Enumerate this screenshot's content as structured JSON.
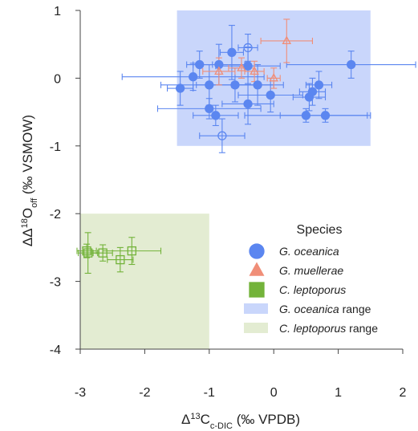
{
  "chart_data": {
    "type": "scatter",
    "xlabel_prefix": "Δ",
    "xlabel_sup": "13",
    "xlabel_main": "C",
    "xlabel_sub": "c-DIC",
    "xlabel_suffix": " (‰ VPDB)",
    "ylabel_prefix": "ΔΔ",
    "ylabel_sup": "18",
    "ylabel_main": "O",
    "ylabel_sub": "off",
    "ylabel_suffix": " (‰ VSMOW)",
    "xlim": [
      -3.0,
      2.0
    ],
    "ylim": [
      -4.0,
      1.0
    ],
    "xticks": [
      -3,
      -2,
      -1,
      0,
      1,
      2
    ],
    "xtick_labels": [
      "-3",
      "-2",
      "-1",
      "0",
      "1",
      "2"
    ],
    "yticks": [
      1,
      0,
      -1,
      -2,
      -3,
      -4
    ],
    "ytick_labels": [
      "1",
      "0",
      "-1",
      "-2",
      "-3",
      "-4"
    ],
    "ranges": [
      {
        "name": "G. oceanica range",
        "x": [
          -1.5,
          1.5
        ],
        "y": [
          -1.0,
          1.0
        ],
        "color": "#c9d6fb"
      },
      {
        "name": "C. leptoporus range",
        "x": [
          -3.0,
          -1.0
        ],
        "y": [
          -4.0,
          -2.0
        ],
        "color": "#e3ecd2"
      }
    ],
    "series": [
      {
        "name": "G. oceanica",
        "color": "#5b86f0",
        "marker": "circle",
        "points": [
          {
            "x": -0.65,
            "y": 0.38,
            "xerr": 0.18,
            "yerr": 0.4,
            "filled": true
          },
          {
            "x": -0.4,
            "y": 0.18,
            "xerr": 0.5,
            "yerr": 0.28,
            "filled": true
          },
          {
            "x": -1.15,
            "y": 0.2,
            "xerr": 0.2,
            "yerr": 0.2,
            "filled": true
          },
          {
            "x": -1.25,
            "y": 0.02,
            "xerr": 1.1,
            "yerr": 0.2,
            "filled": true
          },
          {
            "x": -1.45,
            "y": -0.15,
            "xerr": 0.2,
            "yerr": 0.25,
            "filled": true
          },
          {
            "x": -1.0,
            "y": -0.1,
            "xerr": 0.75,
            "yerr": 0.3,
            "filled": true
          },
          {
            "x": -0.6,
            "y": -0.1,
            "xerr": 0.6,
            "yerr": 0.25,
            "filled": true
          },
          {
            "x": -0.25,
            "y": -0.1,
            "xerr": 0.4,
            "yerr": 0.3,
            "filled": true
          },
          {
            "x": -0.85,
            "y": 0.2,
            "xerr": 0.4,
            "yerr": 0.3,
            "filled": true
          },
          {
            "x": -0.4,
            "y": -0.38,
            "xerr": 0.4,
            "yerr": 0.3,
            "filled": true
          },
          {
            "x": -1.0,
            "y": -0.45,
            "xerr": 0.8,
            "yerr": 0.15,
            "filled": true
          },
          {
            "x": -0.05,
            "y": -0.25,
            "xerr": 0.5,
            "yerr": 0.25,
            "filled": true
          },
          {
            "x": 0.55,
            "y": -0.28,
            "xerr": 0.25,
            "yerr": 0.2,
            "filled": true
          },
          {
            "x": 0.6,
            "y": -0.2,
            "xerr": 0.2,
            "yerr": 0.2,
            "filled": true
          },
          {
            "x": 0.7,
            "y": -0.1,
            "xerr": 0.2,
            "yerr": 0.2,
            "filled": true
          },
          {
            "x": 0.5,
            "y": -0.55,
            "xerr": 0.95,
            "yerr": 0.1,
            "filled": true
          },
          {
            "x": 0.8,
            "y": -0.55,
            "xerr": 0.7,
            "yerr": 0.1,
            "filled": true
          },
          {
            "x": 1.2,
            "y": 0.2,
            "xerr": 1.0,
            "yerr": 0.2,
            "filled": true
          },
          {
            "x": -0.9,
            "y": -0.55,
            "xerr": 0.35,
            "yerr": 0.15,
            "filled": true
          },
          {
            "x": -0.4,
            "y": 0.45,
            "xerr": 0.15,
            "yerr": 0.2,
            "filled": false
          },
          {
            "x": -0.8,
            "y": -0.85,
            "xerr": 0.35,
            "yerr": 0.25,
            "filled": false
          }
        ]
      },
      {
        "name": "G. muellerae",
        "color": "#f08e78",
        "marker": "triangle",
        "points": [
          {
            "x": 0.2,
            "y": 0.55,
            "xerr": 0.4,
            "yerr": 0.32,
            "filled": false
          },
          {
            "x": -0.3,
            "y": 0.1,
            "xerr": 0.15,
            "yerr": 0.15,
            "filled": false
          },
          {
            "x": -0.85,
            "y": 0.1,
            "xerr": 0.25,
            "yerr": 0.2,
            "filled": false
          },
          {
            "x": -0.5,
            "y": 0.15,
            "xerr": 0.2,
            "yerr": 0.15,
            "filled": false
          },
          {
            "x": 0.0,
            "y": 0.0,
            "xerr": 0.1,
            "yerr": 0.15,
            "filled": false
          }
        ]
      },
      {
        "name": "C. leptoporus",
        "color": "#73b33a",
        "marker": "square",
        "points": [
          {
            "x": -2.88,
            "y": -2.58,
            "xerr": 0.15,
            "yerr": 0.3,
            "filled": false
          },
          {
            "x": -2.2,
            "y": -2.55,
            "xerr": 0.45,
            "yerr": 0.2,
            "filled": false
          },
          {
            "x": -2.38,
            "y": -2.68,
            "xerr": 0.2,
            "yerr": 0.18,
            "filled": false
          },
          {
            "x": -2.65,
            "y": -2.58,
            "xerr": 0.15,
            "yerr": 0.12,
            "filled": false
          },
          {
            "x": -2.9,
            "y": -2.55,
            "xerr": 0.15,
            "yerr": 0.1,
            "filled": false
          }
        ]
      }
    ],
    "legend": {
      "title": "Species",
      "placement": "bottom-right",
      "entries": [
        {
          "label": "G. oceanica",
          "italic": true,
          "suffix": "",
          "kind": "circle",
          "color": "#5b86f0"
        },
        {
          "label": "G. muellerae",
          "italic": true,
          "suffix": "",
          "kind": "triangle",
          "color": "#f08e78"
        },
        {
          "label": "C. leptoporus",
          "italic": true,
          "suffix": "",
          "kind": "square",
          "color": "#73b33a"
        },
        {
          "label": "G. oceanica",
          "italic": true,
          "suffix": " range",
          "kind": "band",
          "color": "#c9d6fb"
        },
        {
          "label": "C. leptoporus",
          "italic": true,
          "suffix": " range",
          "kind": "band",
          "color": "#e3ecd2"
        }
      ]
    }
  }
}
